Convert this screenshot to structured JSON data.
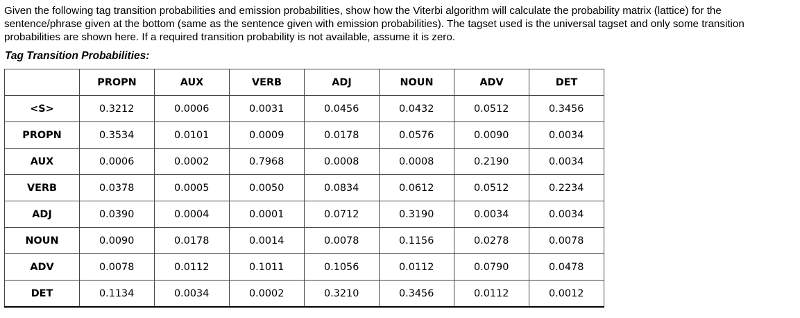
{
  "intro_text": "Given the following tag transition probabilities and emission probabilities, show how the Viterbi algorithm will calculate the probability matrix (lattice) for the sentence/phrase given at the bottom (same as the sentence given with emission probabilities). The tagset used is the universal tagset and only some transition probabilities are shown here. If a required transition probability is not available, assume it is zero.",
  "section_heading": "Tag Transition Probabilities:",
  "table": {
    "corner": "",
    "columns": [
      "PROPN",
      "AUX",
      "VERB",
      "ADJ",
      "NOUN",
      "ADV",
      "DET"
    ],
    "rows": [
      {
        "label": "<S>",
        "values": [
          "0.3212",
          "0.0006",
          "0.0031",
          "0.0456",
          "0.0432",
          "0.0512",
          "0.3456"
        ]
      },
      {
        "label": "PROPN",
        "values": [
          "0.3534",
          "0.0101",
          "0.0009",
          "0.0178",
          "0.0576",
          "0.0090",
          "0.0034"
        ]
      },
      {
        "label": "AUX",
        "values": [
          "0.0006",
          "0.0002",
          "0.7968",
          "0.0008",
          "0.0008",
          "0.2190",
          "0.0034"
        ]
      },
      {
        "label": "VERB",
        "values": [
          "0.0378",
          "0.0005",
          "0.0050",
          "0.0834",
          "0.0612",
          "0.0512",
          "0.2234"
        ]
      },
      {
        "label": "ADJ",
        "values": [
          "0.0390",
          "0.0004",
          "0.0001",
          "0.0712",
          "0.3190",
          "0.0034",
          "0.0034"
        ]
      },
      {
        "label": "NOUN",
        "values": [
          "0.0090",
          "0.0178",
          "0.0014",
          "0.0078",
          "0.1156",
          "0.0278",
          "0.0078"
        ]
      },
      {
        "label": "ADV",
        "values": [
          "0.0078",
          "0.0112",
          "0.1011",
          "0.1056",
          "0.0112",
          "0.0790",
          "0.0478"
        ]
      },
      {
        "label": "DET",
        "values": [
          "0.1134",
          "0.0034",
          "0.0002",
          "0.3210",
          "0.3456",
          "0.0112",
          "0.0012"
        ]
      }
    ]
  }
}
